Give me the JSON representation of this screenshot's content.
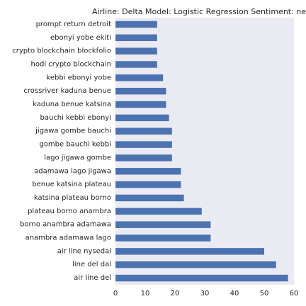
{
  "chart_data": {
    "type": "bar",
    "orientation": "horizontal",
    "title": "Airline: Delta Model: Logistic Regression Sentiment: nega",
    "categories": [
      "prompt return detroit",
      "ebonyi yobe ekiti",
      "crypto blockchain blockfolio",
      "hodl crypto blockchain",
      "kebbi ebonyi yobe",
      "crossriver kaduna benue",
      "kaduna benue katsina",
      "bauchi kebbi ebonyi",
      "jigawa gombe bauchi",
      "gombe bauchi kebbi",
      "lago jigawa gombe",
      "adamawa lago jigawa",
      "benue katsina plateau",
      "katsina plateau borno",
      "plateau borno anambra",
      "borno anambra adamawa",
      "anambra adamawa lago",
      "air line nysedal",
      "line del dal",
      "air line del"
    ],
    "values": [
      14,
      14,
      14,
      14,
      16,
      17,
      17,
      18,
      19,
      19,
      19,
      22,
      22,
      23,
      29,
      32,
      32,
      50,
      54,
      58
    ],
    "xlim": [
      0,
      60
    ],
    "xticks": [
      0,
      10,
      20,
      30,
      40,
      50,
      60
    ],
    "xlabel": "",
    "ylabel": "",
    "grid": false,
    "colors": {
      "bar": "#4c72b0",
      "background": "#eaeaf2",
      "text": "#262626"
    }
  }
}
